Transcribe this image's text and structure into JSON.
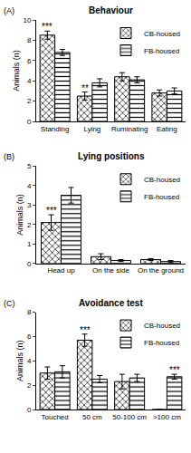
{
  "chart_data": [
    {
      "type": "bar",
      "panel_label": "(A)",
      "title": "Behaviour",
      "y_label": "Animals (n)",
      "categories": [
        "Standing",
        "Lying",
        "Ruminating",
        "Eating"
      ],
      "series": [
        {
          "name": "CB-housed",
          "color": "#000000",
          "marker": "checkered",
          "values": [
            8.5,
            2.5,
            4.4,
            2.8
          ],
          "errors": [
            0.4,
            0.4,
            0.4,
            0.3
          ]
        },
        {
          "name": "FB-housed",
          "color": "#000000",
          "marker": "striped",
          "values": [
            6.8,
            3.8,
            4.1,
            3.0
          ],
          "errors": [
            0.3,
            0.4,
            0.3,
            0.3
          ]
        }
      ],
      "ylim": [
        0,
        10
      ],
      "yticks": [
        0,
        2,
        4,
        6,
        8,
        10
      ],
      "legend": "top-right",
      "annotations": [
        {
          "category": "Standing",
          "series": "CB-housed",
          "text": "***"
        },
        {
          "category": "Lying",
          "series": "CB-housed",
          "text": "**"
        }
      ]
    },
    {
      "type": "bar",
      "panel_label": "(B)",
      "title": "Lying positions",
      "y_label": "Animals (n)",
      "categories": [
        "Head up",
        "On the side",
        "On the ground"
      ],
      "series": [
        {
          "name": "CB-housed",
          "color": "#000000",
          "marker": "checkered",
          "values": [
            2.1,
            0.35,
            0.2
          ],
          "errors": [
            0.4,
            0.15,
            0.05
          ]
        },
        {
          "name": "FB-housed",
          "color": "#000000",
          "marker": "striped",
          "values": [
            3.5,
            0.15,
            0.1
          ],
          "errors": [
            0.4,
            0.05,
            0.05
          ]
        }
      ],
      "ylim": [
        0,
        5
      ],
      "yticks": [
        0,
        1,
        2,
        3,
        4,
        5
      ],
      "legend": "top-right",
      "annotations": [
        {
          "category": "Head up",
          "series": "CB-housed",
          "text": "***"
        }
      ]
    },
    {
      "type": "bar",
      "panel_label": "(C)",
      "title": "Avoidance test",
      "y_label": "Animals (n)",
      "categories": [
        "Touched",
        "50 cm",
        "50-100 cm",
        ">100 cm"
      ],
      "series": [
        {
          "name": "CB-housed",
          "color": "#000000",
          "marker": "checkered",
          "values": [
            3.0,
            5.7,
            2.3,
            0
          ],
          "errors": [
            0.5,
            0.5,
            0.6,
            0
          ]
        },
        {
          "name": "FB-housed",
          "color": "#000000",
          "marker": "striped",
          "values": [
            3.1,
            2.5,
            2.6,
            2.7
          ],
          "errors": [
            0.5,
            0.3,
            0.3,
            0.2
          ]
        }
      ],
      "ylim": [
        0,
        8
      ],
      "yticks": [
        0,
        2,
        4,
        6,
        8
      ],
      "legend": "top-right",
      "annotations": [
        {
          "category": "50 cm",
          "series": "CB-housed",
          "text": "***"
        },
        {
          "category": ">100 cm",
          "series": "FB-housed",
          "text": "***"
        }
      ]
    }
  ]
}
